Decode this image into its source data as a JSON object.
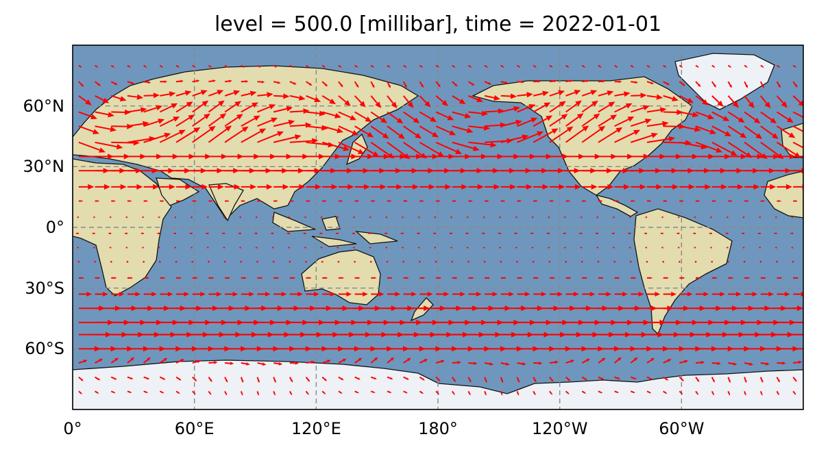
{
  "title": "level = 500.0 [millibar], time = 2022-01-01",
  "axes": {
    "lat_ticks": [
      {
        "label": "60°N",
        "value": 60
      },
      {
        "label": "30°N",
        "value": 30
      },
      {
        "label": "0°",
        "value": 0
      },
      {
        "label": "30°S",
        "value": -30
      },
      {
        "label": "60°S",
        "value": -60
      }
    ],
    "lon_ticks": [
      {
        "label": "0°",
        "value": 0
      },
      {
        "label": "60°E",
        "value": 60
      },
      {
        "label": "120°E",
        "value": 120
      },
      {
        "label": "180°",
        "value": 180
      },
      {
        "label": "120°W",
        "value": 240
      },
      {
        "label": "60°W",
        "value": 300
      }
    ]
  },
  "map": {
    "projection": "PlateCarree, central longitude 180",
    "lon_range": [
      0,
      360
    ],
    "lat_range": [
      -90,
      90
    ],
    "background": "stock relief image",
    "coastlines": true,
    "gridlines": "dashed grey",
    "ocean_color": "#6f97bd",
    "land_color": "#e2dcae",
    "ice_color": "#eef1f6",
    "coast_color": "#111111",
    "arrow_color": "#ff0000"
  },
  "chart_data": {
    "type": "quiver",
    "variable": "500 hPa wind vectors",
    "level_mb": 500.0,
    "time": "2022-01-01",
    "zonal_profile": [
      {
        "lat": 80,
        "u": 3,
        "v": -2
      },
      {
        "lat": 72,
        "u": 6,
        "v": -3
      },
      {
        "lat": 65,
        "u": 14,
        "v": -4
      },
      {
        "lat": 57,
        "u": 18,
        "v": 0
      },
      {
        "lat": 50,
        "u": 20,
        "v": 0
      },
      {
        "lat": 42,
        "u": 26,
        "v": 0
      },
      {
        "lat": 35,
        "u": 32,
        "v": 0
      },
      {
        "lat": 28,
        "u": 28,
        "v": 0
      },
      {
        "lat": 20,
        "u": 14,
        "v": 0
      },
      {
        "lat": 13,
        "u": 4,
        "v": 0
      },
      {
        "lat": 5,
        "u": -2,
        "v": 0
      },
      {
        "lat": -3,
        "u": -3,
        "v": 0
      },
      {
        "lat": -10,
        "u": -2,
        "v": 0
      },
      {
        "lat": -17,
        "u": 1,
        "v": 0
      },
      {
        "lat": -25,
        "u": 5,
        "v": 0
      },
      {
        "lat": -33,
        "u": 12,
        "v": 0
      },
      {
        "lat": -40,
        "u": 24,
        "v": 0
      },
      {
        "lat": -47,
        "u": 32,
        "v": 0
      },
      {
        "lat": -53,
        "u": 30,
        "v": 0
      },
      {
        "lat": -60,
        "u": 20,
        "v": 0
      },
      {
        "lat": -67,
        "u": 8,
        "v": 2
      },
      {
        "lat": -74,
        "u": 4,
        "v": -4
      },
      {
        "lat": -81,
        "u": 3,
        "v": -3
      }
    ],
    "lon_step": 8
  }
}
